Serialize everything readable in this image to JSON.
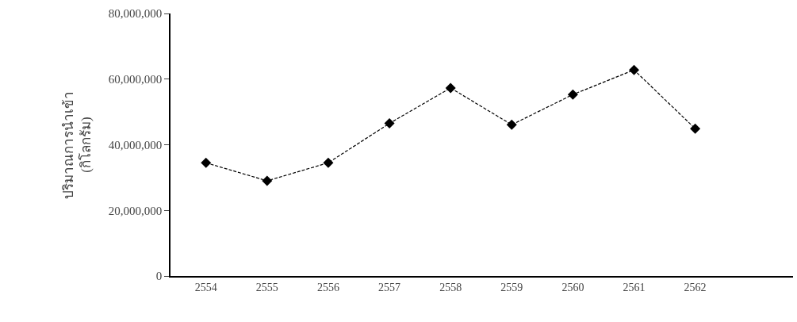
{
  "chart_data": {
    "type": "line",
    "ylabel": "ปริมาณการนำเข้า\n(กิโลกรัม)",
    "categories": [
      "2554",
      "2555",
      "2556",
      "2557",
      "2558",
      "2559",
      "2560",
      "2561",
      "2562"
    ],
    "series": [
      {
        "color": "#000000",
        "values": [
          34500000,
          29000000,
          34500000,
          46500000,
          57300000,
          46100000,
          55300000,
          62800000,
          44900000
        ]
      }
    ],
    "ylim": [
      0,
      80000000
    ],
    "yticks": [
      {
        "value": 0,
        "label": "0"
      },
      {
        "value": 20000000,
        "label": "20,000,000"
      },
      {
        "value": 40000000,
        "label": "40,000,000"
      },
      {
        "value": 60000000,
        "label": "60,000,000"
      },
      {
        "value": 80000000,
        "label": "80,000,000"
      }
    ],
    "marker": "diamond",
    "line_style": "dashed"
  }
}
